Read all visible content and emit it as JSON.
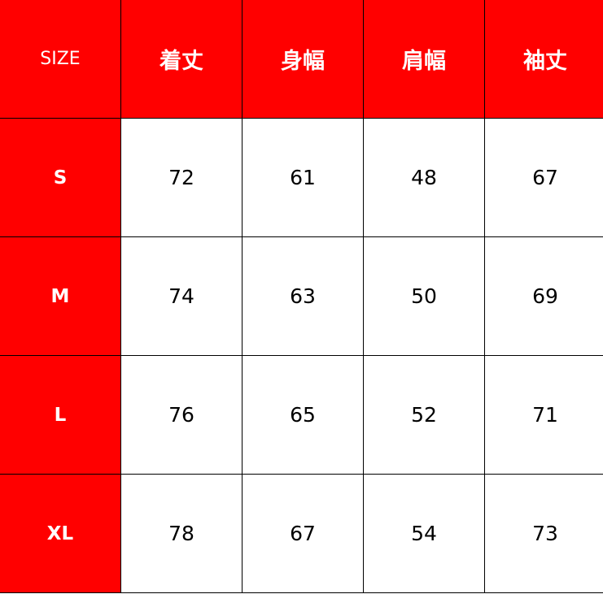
{
  "table": {
    "corner_label": "SIZE",
    "headers": [
      "着丈",
      "身幅",
      "肩幅",
      "袖丈"
    ],
    "rows": [
      {
        "size": "S",
        "values": [
          "72",
          "61",
          "48",
          "67"
        ]
      },
      {
        "size": "M",
        "values": [
          "74",
          "63",
          "50",
          "69"
        ]
      },
      {
        "size": "L",
        "values": [
          "76",
          "65",
          "52",
          "71"
        ]
      },
      {
        "size": "XL",
        "values": [
          "78",
          "67",
          "54",
          "73"
        ]
      }
    ]
  },
  "colors": {
    "header_bg": "#ff0000",
    "header_text": "#ffffff",
    "cell_bg": "#ffffff",
    "border": "#000000"
  }
}
